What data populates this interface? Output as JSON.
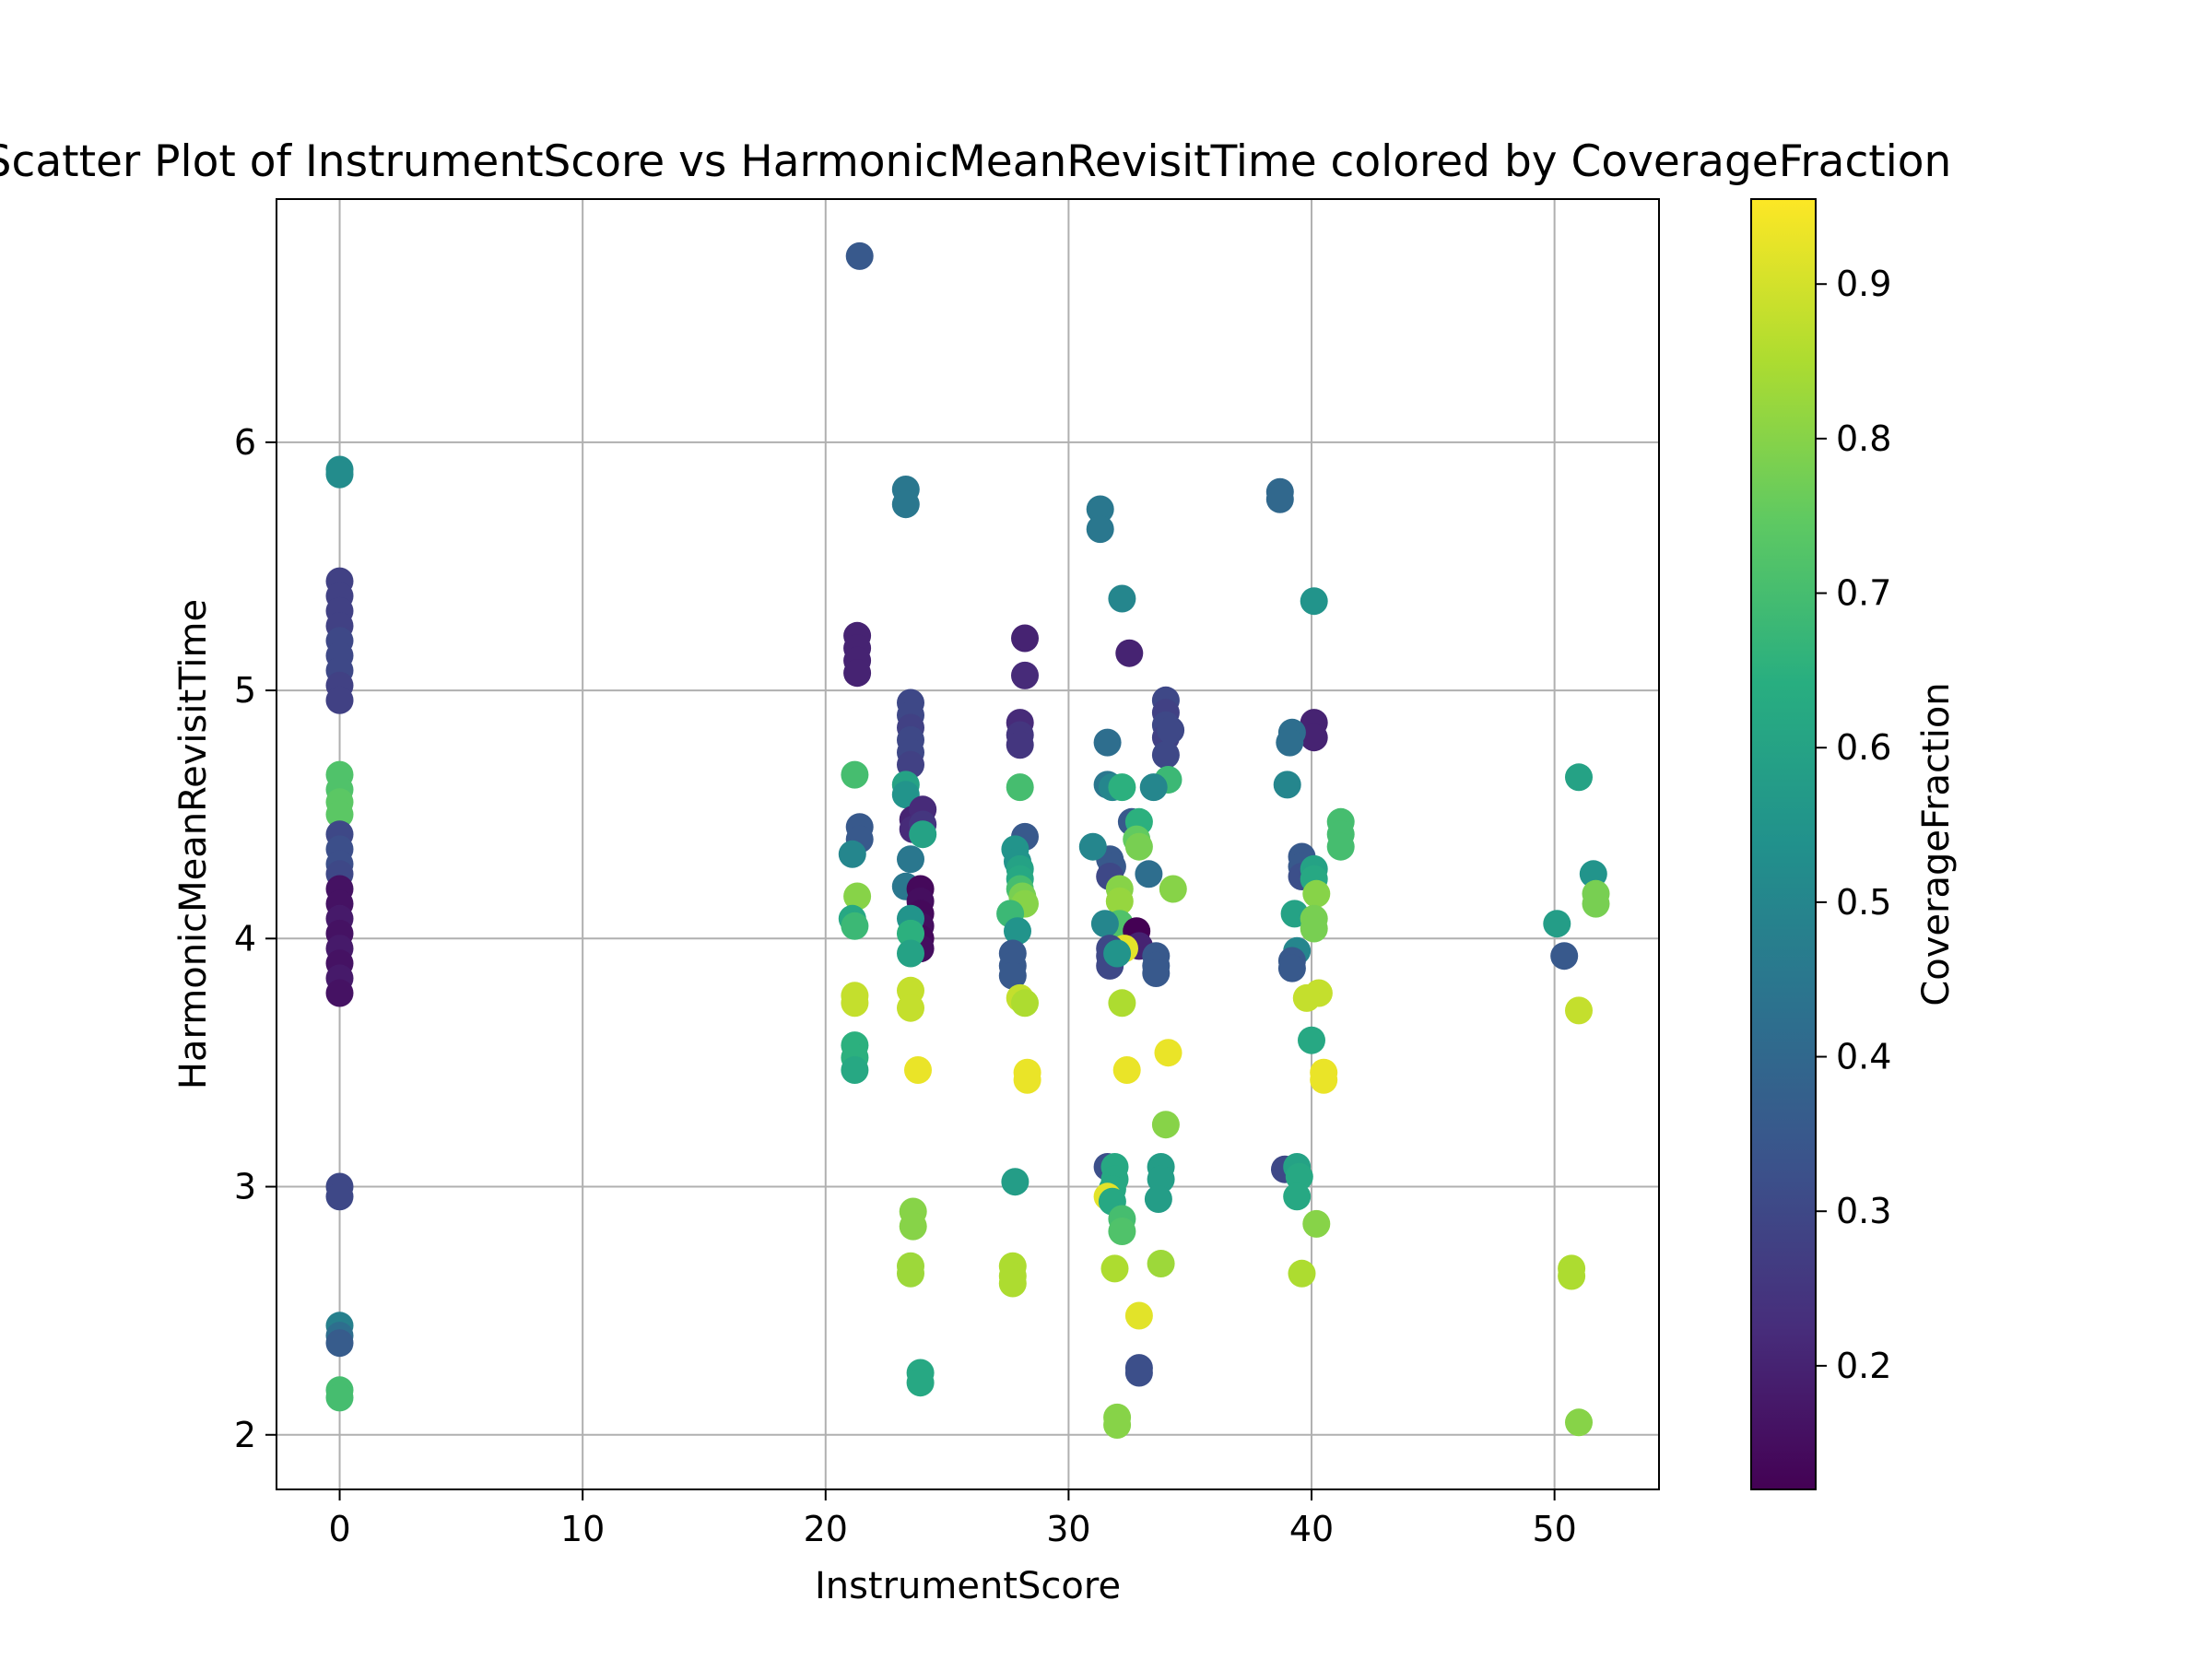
{
  "chart_data": {
    "type": "scatter",
    "title": "Scatter Plot of InstrumentScore vs HarmonicMeanRevisitTime colored by CoverageFraction",
    "xlabel": "InstrumentScore",
    "ylabel": "HarmonicMeanRevisitTime",
    "xlim": [
      -2.6,
      54.3
    ],
    "ylim": [
      1.78,
      6.98
    ],
    "x_ticks": [
      "0",
      "10",
      "20",
      "30",
      "40",
      "50"
    ],
    "y_ticks": [
      "2",
      "3",
      "4",
      "5",
      "6"
    ],
    "grid": true,
    "colorbar": {
      "label": "CoverageFraction",
      "colormap": "viridis",
      "range": [
        0.12,
        0.955
      ],
      "ticks": [
        "0.2",
        "0.3",
        "0.4",
        "0.5",
        "0.6",
        "0.7",
        "0.8",
        "0.9"
      ]
    },
    "points": [
      [
        0,
        5.89,
        0.52
      ],
      [
        0,
        5.87,
        0.52
      ],
      [
        0,
        5.44,
        0.28
      ],
      [
        0,
        5.38,
        0.28
      ],
      [
        0,
        5.32,
        0.28
      ],
      [
        0,
        5.26,
        0.28
      ],
      [
        0,
        5.2,
        0.3
      ],
      [
        0,
        5.14,
        0.3
      ],
      [
        0,
        5.08,
        0.3
      ],
      [
        0,
        5.02,
        0.28
      ],
      [
        0,
        4.96,
        0.28
      ],
      [
        0,
        4.66,
        0.72
      ],
      [
        0,
        4.6,
        0.72
      ],
      [
        0,
        4.55,
        0.74
      ],
      [
        0,
        4.5,
        0.74
      ],
      [
        0,
        4.42,
        0.3
      ],
      [
        0,
        4.36,
        0.32
      ],
      [
        0,
        4.3,
        0.32
      ],
      [
        0,
        4.26,
        0.3
      ],
      [
        0,
        4.2,
        0.16
      ],
      [
        0,
        4.14,
        0.16
      ],
      [
        0,
        4.08,
        0.18
      ],
      [
        0,
        4.02,
        0.16
      ],
      [
        0,
        3.96,
        0.18
      ],
      [
        0,
        3.9,
        0.16
      ],
      [
        0,
        3.84,
        0.18
      ],
      [
        0,
        3.78,
        0.16
      ],
      [
        0,
        3.0,
        0.3
      ],
      [
        0,
        2.96,
        0.3
      ],
      [
        0,
        2.44,
        0.48
      ],
      [
        0,
        2.4,
        0.42
      ],
      [
        0,
        2.37,
        0.36
      ],
      [
        0,
        2.18,
        0.7
      ],
      [
        0,
        2.15,
        0.7
      ],
      [
        21.4,
        6.75,
        0.35
      ],
      [
        21.3,
        5.22,
        0.2
      ],
      [
        21.3,
        5.17,
        0.2
      ],
      [
        21.3,
        5.12,
        0.2
      ],
      [
        21.3,
        5.07,
        0.2
      ],
      [
        21.2,
        4.66,
        0.7
      ],
      [
        21.4,
        4.45,
        0.35
      ],
      [
        21.4,
        4.4,
        0.35
      ],
      [
        21.1,
        4.34,
        0.5
      ],
      [
        21.3,
        4.17,
        0.8
      ],
      [
        21.1,
        4.08,
        0.62
      ],
      [
        21.2,
        4.05,
        0.68
      ],
      [
        21.2,
        3.77,
        0.88
      ],
      [
        21.2,
        3.74,
        0.88
      ],
      [
        21.2,
        3.57,
        0.65
      ],
      [
        21.2,
        3.52,
        0.65
      ],
      [
        21.2,
        3.47,
        0.62
      ],
      [
        23.3,
        5.81,
        0.45
      ],
      [
        23.3,
        5.75,
        0.45
      ],
      [
        23.5,
        4.95,
        0.3
      ],
      [
        23.5,
        4.9,
        0.3
      ],
      [
        23.5,
        4.85,
        0.28
      ],
      [
        23.5,
        4.8,
        0.3
      ],
      [
        23.5,
        4.75,
        0.3
      ],
      [
        23.5,
        4.7,
        0.28
      ],
      [
        23.3,
        4.62,
        0.6
      ],
      [
        23.3,
        4.58,
        0.55
      ],
      [
        23.6,
        4.48,
        0.2
      ],
      [
        23.6,
        4.44,
        0.22
      ],
      [
        23.5,
        4.32,
        0.45
      ],
      [
        23.3,
        4.21,
        0.45
      ],
      [
        23.9,
        4.2,
        0.14
      ],
      [
        23.9,
        4.15,
        0.15
      ],
      [
        23.9,
        4.1,
        0.14
      ],
      [
        23.9,
        4.05,
        0.15
      ],
      [
        23.9,
        4.0,
        0.14
      ],
      [
        23.9,
        3.96,
        0.15
      ],
      [
        24.0,
        4.52,
        0.22
      ],
      [
        24.0,
        4.46,
        0.25
      ],
      [
        24.0,
        4.42,
        0.6
      ],
      [
        23.5,
        4.08,
        0.55
      ],
      [
        23.5,
        4.02,
        0.65
      ],
      [
        23.5,
        3.94,
        0.6
      ],
      [
        23.5,
        3.79,
        0.88
      ],
      [
        23.5,
        3.72,
        0.88
      ],
      [
        23.8,
        3.47,
        0.93
      ],
      [
        23.6,
        2.9,
        0.8
      ],
      [
        23.6,
        2.84,
        0.8
      ],
      [
        23.5,
        2.68,
        0.83
      ],
      [
        23.5,
        2.65,
        0.83
      ],
      [
        23.9,
        2.25,
        0.62
      ],
      [
        23.9,
        2.21,
        0.62
      ],
      [
        28.2,
        5.21,
        0.2
      ],
      [
        28.2,
        5.06,
        0.22
      ],
      [
        28.0,
        4.87,
        0.22
      ],
      [
        28.0,
        4.82,
        0.25
      ],
      [
        28.0,
        4.78,
        0.25
      ],
      [
        28.0,
        4.61,
        0.7
      ],
      [
        28.2,
        4.41,
        0.35
      ],
      [
        27.8,
        4.36,
        0.55
      ],
      [
        27.9,
        4.31,
        0.55
      ],
      [
        28.0,
        4.28,
        0.6
      ],
      [
        28.0,
        4.24,
        0.62
      ],
      [
        28.0,
        4.2,
        0.7
      ],
      [
        28.1,
        4.17,
        0.78
      ],
      [
        28.2,
        4.14,
        0.8
      ],
      [
        27.6,
        4.1,
        0.68
      ],
      [
        27.9,
        4.03,
        0.55
      ],
      [
        27.7,
        3.94,
        0.35
      ],
      [
        27.7,
        3.89,
        0.35
      ],
      [
        27.7,
        3.85,
        0.35
      ],
      [
        28.0,
        3.76,
        0.88
      ],
      [
        28.2,
        3.74,
        0.85
      ],
      [
        28.3,
        3.46,
        0.93
      ],
      [
        28.3,
        3.43,
        0.93
      ],
      [
        27.8,
        3.02,
        0.58
      ],
      [
        27.7,
        2.68,
        0.85
      ],
      [
        27.7,
        2.64,
        0.85
      ],
      [
        27.7,
        2.61,
        0.85
      ],
      [
        31.3,
        5.73,
        0.45
      ],
      [
        31.3,
        5.65,
        0.45
      ],
      [
        32.2,
        5.37,
        0.5
      ],
      [
        32.5,
        5.15,
        0.2
      ],
      [
        31.6,
        4.79,
        0.42
      ],
      [
        31.6,
        4.62,
        0.45
      ],
      [
        31.8,
        4.61,
        0.5
      ],
      [
        32.2,
        4.61,
        0.65
      ],
      [
        32.6,
        4.47,
        0.35
      ],
      [
        32.9,
        4.47,
        0.65
      ],
      [
        32.8,
        4.4,
        0.75
      ],
      [
        32.9,
        4.37,
        0.78
      ],
      [
        31.7,
        4.32,
        0.35
      ],
      [
        31.8,
        4.29,
        0.35
      ],
      [
        31.7,
        4.25,
        0.3
      ],
      [
        31.0,
        4.37,
        0.5
      ],
      [
        32.1,
        4.2,
        0.8
      ],
      [
        32.1,
        4.15,
        0.82
      ],
      [
        32.1,
        4.06,
        0.72
      ],
      [
        31.5,
        4.06,
        0.5
      ],
      [
        32.8,
        4.03,
        0.12
      ],
      [
        32.9,
        3.97,
        0.2
      ],
      [
        32.3,
        3.96,
        0.92
      ],
      [
        31.7,
        3.96,
        0.3
      ],
      [
        31.7,
        3.93,
        0.3
      ],
      [
        31.7,
        3.89,
        0.3
      ],
      [
        32.0,
        3.94,
        0.55
      ],
      [
        32.2,
        3.74,
        0.85
      ],
      [
        32.4,
        3.47,
        0.93
      ],
      [
        31.6,
        3.08,
        0.32
      ],
      [
        31.9,
        3.08,
        0.62
      ],
      [
        31.9,
        3.03,
        0.62
      ],
      [
        31.8,
        2.99,
        0.62
      ],
      [
        31.6,
        2.96,
        0.92
      ],
      [
        31.8,
        2.94,
        0.62
      ],
      [
        32.2,
        2.87,
        0.7
      ],
      [
        32.2,
        2.82,
        0.72
      ],
      [
        31.9,
        2.67,
        0.85
      ],
      [
        32.9,
        2.48,
        0.92
      ],
      [
        32.9,
        2.27,
        0.32
      ],
      [
        32.9,
        2.25,
        0.32
      ],
      [
        32.0,
        2.07,
        0.8
      ],
      [
        32.0,
        2.04,
        0.8
      ],
      [
        34.0,
        4.96,
        0.3
      ],
      [
        34.0,
        4.91,
        0.28
      ],
      [
        34.0,
        4.86,
        0.3
      ],
      [
        34.0,
        4.81,
        0.28
      ],
      [
        34.2,
        4.84,
        0.3
      ],
      [
        34.0,
        4.74,
        0.3
      ],
      [
        34.1,
        4.64,
        0.68
      ],
      [
        33.5,
        4.61,
        0.5
      ],
      [
        33.3,
        4.26,
        0.42
      ],
      [
        34.3,
        4.2,
        0.8
      ],
      [
        33.6,
        3.93,
        0.35
      ],
      [
        33.6,
        3.89,
        0.35
      ],
      [
        33.6,
        3.86,
        0.35
      ],
      [
        34.1,
        3.54,
        0.93
      ],
      [
        34.0,
        3.25,
        0.8
      ],
      [
        33.8,
        3.08,
        0.58
      ],
      [
        33.8,
        3.03,
        0.58
      ],
      [
        33.7,
        2.95,
        0.58
      ],
      [
        33.8,
        2.69,
        0.83
      ],
      [
        38.7,
        5.8,
        0.4
      ],
      [
        38.7,
        5.77,
        0.4
      ],
      [
        40.1,
        5.36,
        0.55
      ],
      [
        40.1,
        4.87,
        0.2
      ],
      [
        40.1,
        4.81,
        0.2
      ],
      [
        39.2,
        4.83,
        0.42
      ],
      [
        39.1,
        4.79,
        0.42
      ],
      [
        39.0,
        4.62,
        0.5
      ],
      [
        39.6,
        4.33,
        0.35
      ],
      [
        39.6,
        4.29,
        0.35
      ],
      [
        39.6,
        4.25,
        0.32
      ],
      [
        40.1,
        4.28,
        0.6
      ],
      [
        40.1,
        4.24,
        0.62
      ],
      [
        40.2,
        4.18,
        0.8
      ],
      [
        39.3,
        4.1,
        0.6
      ],
      [
        40.1,
        4.08,
        0.78
      ],
      [
        40.1,
        4.04,
        0.78
      ],
      [
        39.4,
        3.95,
        0.5
      ],
      [
        39.2,
        3.91,
        0.35
      ],
      [
        39.2,
        3.88,
        0.35
      ],
      [
        40.3,
        3.78,
        0.88
      ],
      [
        39.8,
        3.76,
        0.88
      ],
      [
        40.0,
        3.59,
        0.62
      ],
      [
        40.5,
        3.46,
        0.93
      ],
      [
        40.5,
        3.43,
        0.93
      ],
      [
        38.9,
        3.07,
        0.3
      ],
      [
        39.4,
        3.08,
        0.6
      ],
      [
        39.5,
        3.04,
        0.62
      ],
      [
        39.4,
        2.96,
        0.62
      ],
      [
        40.2,
        2.85,
        0.8
      ],
      [
        39.6,
        2.65,
        0.85
      ],
      [
        41.2,
        4.47,
        0.7
      ],
      [
        41.2,
        4.42,
        0.7
      ],
      [
        41.2,
        4.37,
        0.7
      ],
      [
        50.1,
        4.06,
        0.58
      ],
      [
        50.4,
        3.93,
        0.35
      ],
      [
        51.0,
        4.65,
        0.6
      ],
      [
        51.6,
        4.26,
        0.55
      ],
      [
        51.7,
        4.18,
        0.78
      ],
      [
        51.7,
        4.14,
        0.78
      ],
      [
        51.0,
        3.71,
        0.88
      ],
      [
        50.7,
        2.67,
        0.85
      ],
      [
        50.7,
        2.64,
        0.85
      ],
      [
        51.0,
        2.05,
        0.8
      ]
    ]
  }
}
